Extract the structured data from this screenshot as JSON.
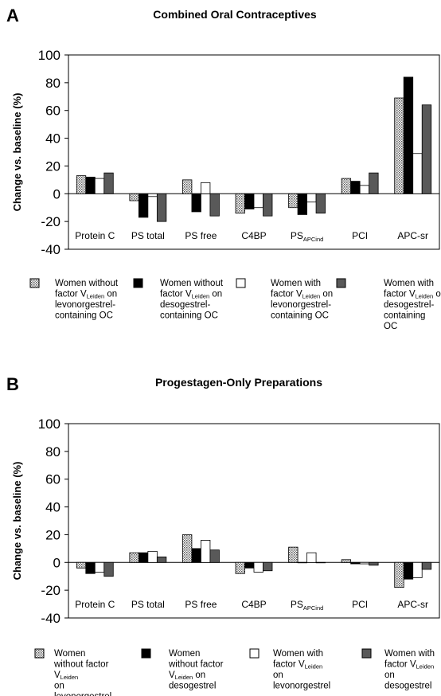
{
  "colors": {
    "series_1": "#d9d9d9",
    "series_2": "#000000",
    "series_3": "#ffffff",
    "series_4": "#595959"
  },
  "chart_data": [
    {
      "type": "bar",
      "panel": "A",
      "title": "Combined Oral Contraceptives",
      "ylabel": "Change vs. baseline (%)",
      "ylim": [
        -40,
        100
      ],
      "yticks": [
        -40,
        -20,
        0,
        20,
        40,
        60,
        80,
        100
      ],
      "grid": false,
      "legend_position": "bottom",
      "categories": [
        {
          "main": "Protein C",
          "sub": ""
        },
        {
          "main": "PS total",
          "sub": ""
        },
        {
          "main": "PS free",
          "sub": ""
        },
        {
          "main": "C4BP",
          "sub": ""
        },
        {
          "main": "PS",
          "sub": "APCind"
        },
        {
          "main": "PCI",
          "sub": ""
        },
        {
          "main": "APC-sr",
          "sub": ""
        }
      ],
      "series": [
        {
          "lines": [
            [
              "Women without"
            ],
            [
              "factor V",
              "Leiden",
              " on"
            ],
            [
              "levonorgestrel-"
            ],
            [
              "containing OC"
            ]
          ],
          "values": [
            13,
            -5,
            10,
            -14,
            -10,
            11,
            69
          ]
        },
        {
          "lines": [
            [
              "Women without"
            ],
            [
              "factor V",
              "Leiden",
              " on"
            ],
            [
              "desogestrel-"
            ],
            [
              "containing OC"
            ]
          ],
          "values": [
            12,
            -17,
            -13,
            -11,
            -15,
            9,
            84
          ]
        },
        {
          "lines": [
            [
              "Women with"
            ],
            [
              "factor V",
              "Leiden",
              " on"
            ],
            [
              "levonorgestrel-"
            ],
            [
              "containing OC"
            ]
          ],
          "values": [
            11,
            -2,
            8,
            -10,
            -6,
            6,
            29
          ]
        },
        {
          "lines": [
            [
              "Women with"
            ],
            [
              "factor V",
              "Leiden",
              " on"
            ],
            [
              "desogestrel-"
            ],
            [
              "containing"
            ],
            [
              "OC"
            ]
          ],
          "values": [
            15,
            -20,
            -16,
            -16,
            -14,
            15,
            64
          ]
        }
      ]
    },
    {
      "type": "bar",
      "panel": "B",
      "title": "Progestagen-Only Preparations",
      "ylabel": "Change vs. baseline (%)",
      "ylim": [
        -40,
        100
      ],
      "yticks": [
        -40,
        -20,
        0,
        20,
        40,
        60,
        80,
        100
      ],
      "grid": false,
      "legend_position": "bottom",
      "categories": [
        {
          "main": "Protein C",
          "sub": ""
        },
        {
          "main": "PS total",
          "sub": ""
        },
        {
          "main": "PS free",
          "sub": ""
        },
        {
          "main": "C4BP",
          "sub": ""
        },
        {
          "main": "PS",
          "sub": "APCind"
        },
        {
          "main": "PCI",
          "sub": ""
        },
        {
          "main": "APC-sr",
          "sub": ""
        }
      ],
      "series": [
        {
          "lines": [
            [
              "Women"
            ],
            [
              "without factor"
            ],
            [
              "V",
              "Leiden",
              ""
            ],
            [
              "on"
            ],
            [
              "levonorgestrel"
            ]
          ],
          "values": [
            -4,
            7,
            20,
            -8,
            11,
            2,
            -18
          ]
        },
        {
          "lines": [
            [
              "Women"
            ],
            [
              "without factor"
            ],
            [
              "V",
              "Leiden",
              " on"
            ],
            [
              "desogestrel"
            ]
          ],
          "values": [
            -8,
            7,
            10,
            -4,
            0,
            -1,
            -12
          ]
        },
        {
          "lines": [
            [
              "Women with"
            ],
            [
              "factor V",
              "Leiden",
              ""
            ],
            [
              "on"
            ],
            [
              "levonorgestrel"
            ]
          ],
          "values": [
            -7,
            8,
            16,
            -7,
            7,
            -1,
            -11
          ]
        },
        {
          "lines": [
            [
              "Women with"
            ],
            [
              "factor V",
              "Leiden",
              ""
            ],
            [
              "on"
            ],
            [
              "desogestrel"
            ]
          ],
          "values": [
            -10,
            4,
            9,
            -6,
            0,
            -2,
            -5
          ]
        }
      ]
    }
  ]
}
